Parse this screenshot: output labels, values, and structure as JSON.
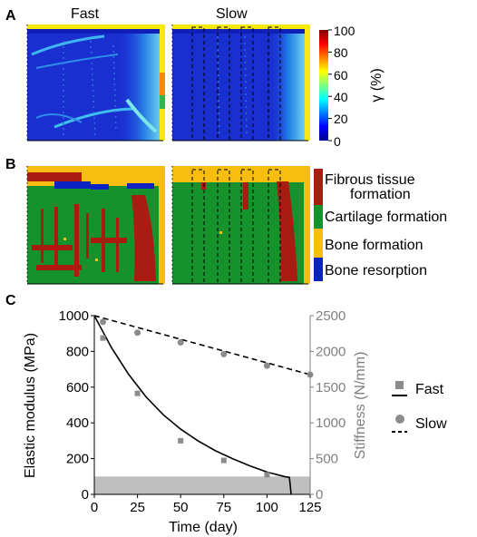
{
  "panels": {
    "a_label": "A",
    "b_label": "B",
    "c_label": "C",
    "fast_title": "Fast",
    "slow_title": "Slow"
  },
  "colorbar": {
    "ticks": [
      "100",
      "80",
      "60",
      "40",
      "20",
      "0"
    ],
    "label": "γ (%)"
  },
  "tissue_legend": {
    "items": [
      {
        "line1": "Fibrous tissue",
        "line2": "formation",
        "color": "#aa1b12"
      },
      {
        "line1": "Cartilage formation",
        "line2": "",
        "color": "#15922b"
      },
      {
        "line1": "Bone formation",
        "line2": "",
        "color": "#f7be0f"
      },
      {
        "line1": "Bone resorption",
        "line2": "",
        "color": "#0b22c4"
      }
    ]
  },
  "chart_data": {
    "type": "scatter",
    "xlabel": "Time (day)",
    "ylabel": "Elastic modulus (MPa)",
    "ylabel_right": "Stiffness (N/mm)",
    "xlim": [
      0,
      125
    ],
    "ylim": [
      0,
      1000
    ],
    "ylim_right": [
      0,
      2500
    ],
    "xticks": [
      "0",
      "25",
      "50",
      "75",
      "100",
      "125"
    ],
    "yticks": [
      "0",
      "200",
      "400",
      "600",
      "800",
      "1000"
    ],
    "yticks_right": [
      "0",
      "500",
      "1000",
      "1500",
      "2000",
      "2500"
    ],
    "shaded_band": [
      0,
      100
    ],
    "series": [
      {
        "name": "Fast",
        "marker": "square",
        "line": "solid",
        "x": [
          5,
          25,
          50,
          75,
          100
        ],
        "y": [
          875,
          565,
          300,
          190,
          110
        ],
        "fit_x": [
          0,
          10,
          20,
          30,
          40,
          50,
          60,
          70,
          80,
          90,
          100,
          110,
          113,
          114
        ],
        "fit_y": [
          1000,
          820,
          670,
          545,
          445,
          365,
          300,
          245,
          200,
          160,
          125,
          100,
          95,
          0
        ]
      },
      {
        "name": "Slow",
        "marker": "circle",
        "line": "dashed",
        "x": [
          5,
          25,
          50,
          75,
          100,
          125
        ],
        "y": [
          965,
          905,
          850,
          785,
          720,
          670
        ],
        "fit_x": [
          0,
          125
        ],
        "fit_y": [
          1000,
          670
        ]
      }
    ]
  }
}
